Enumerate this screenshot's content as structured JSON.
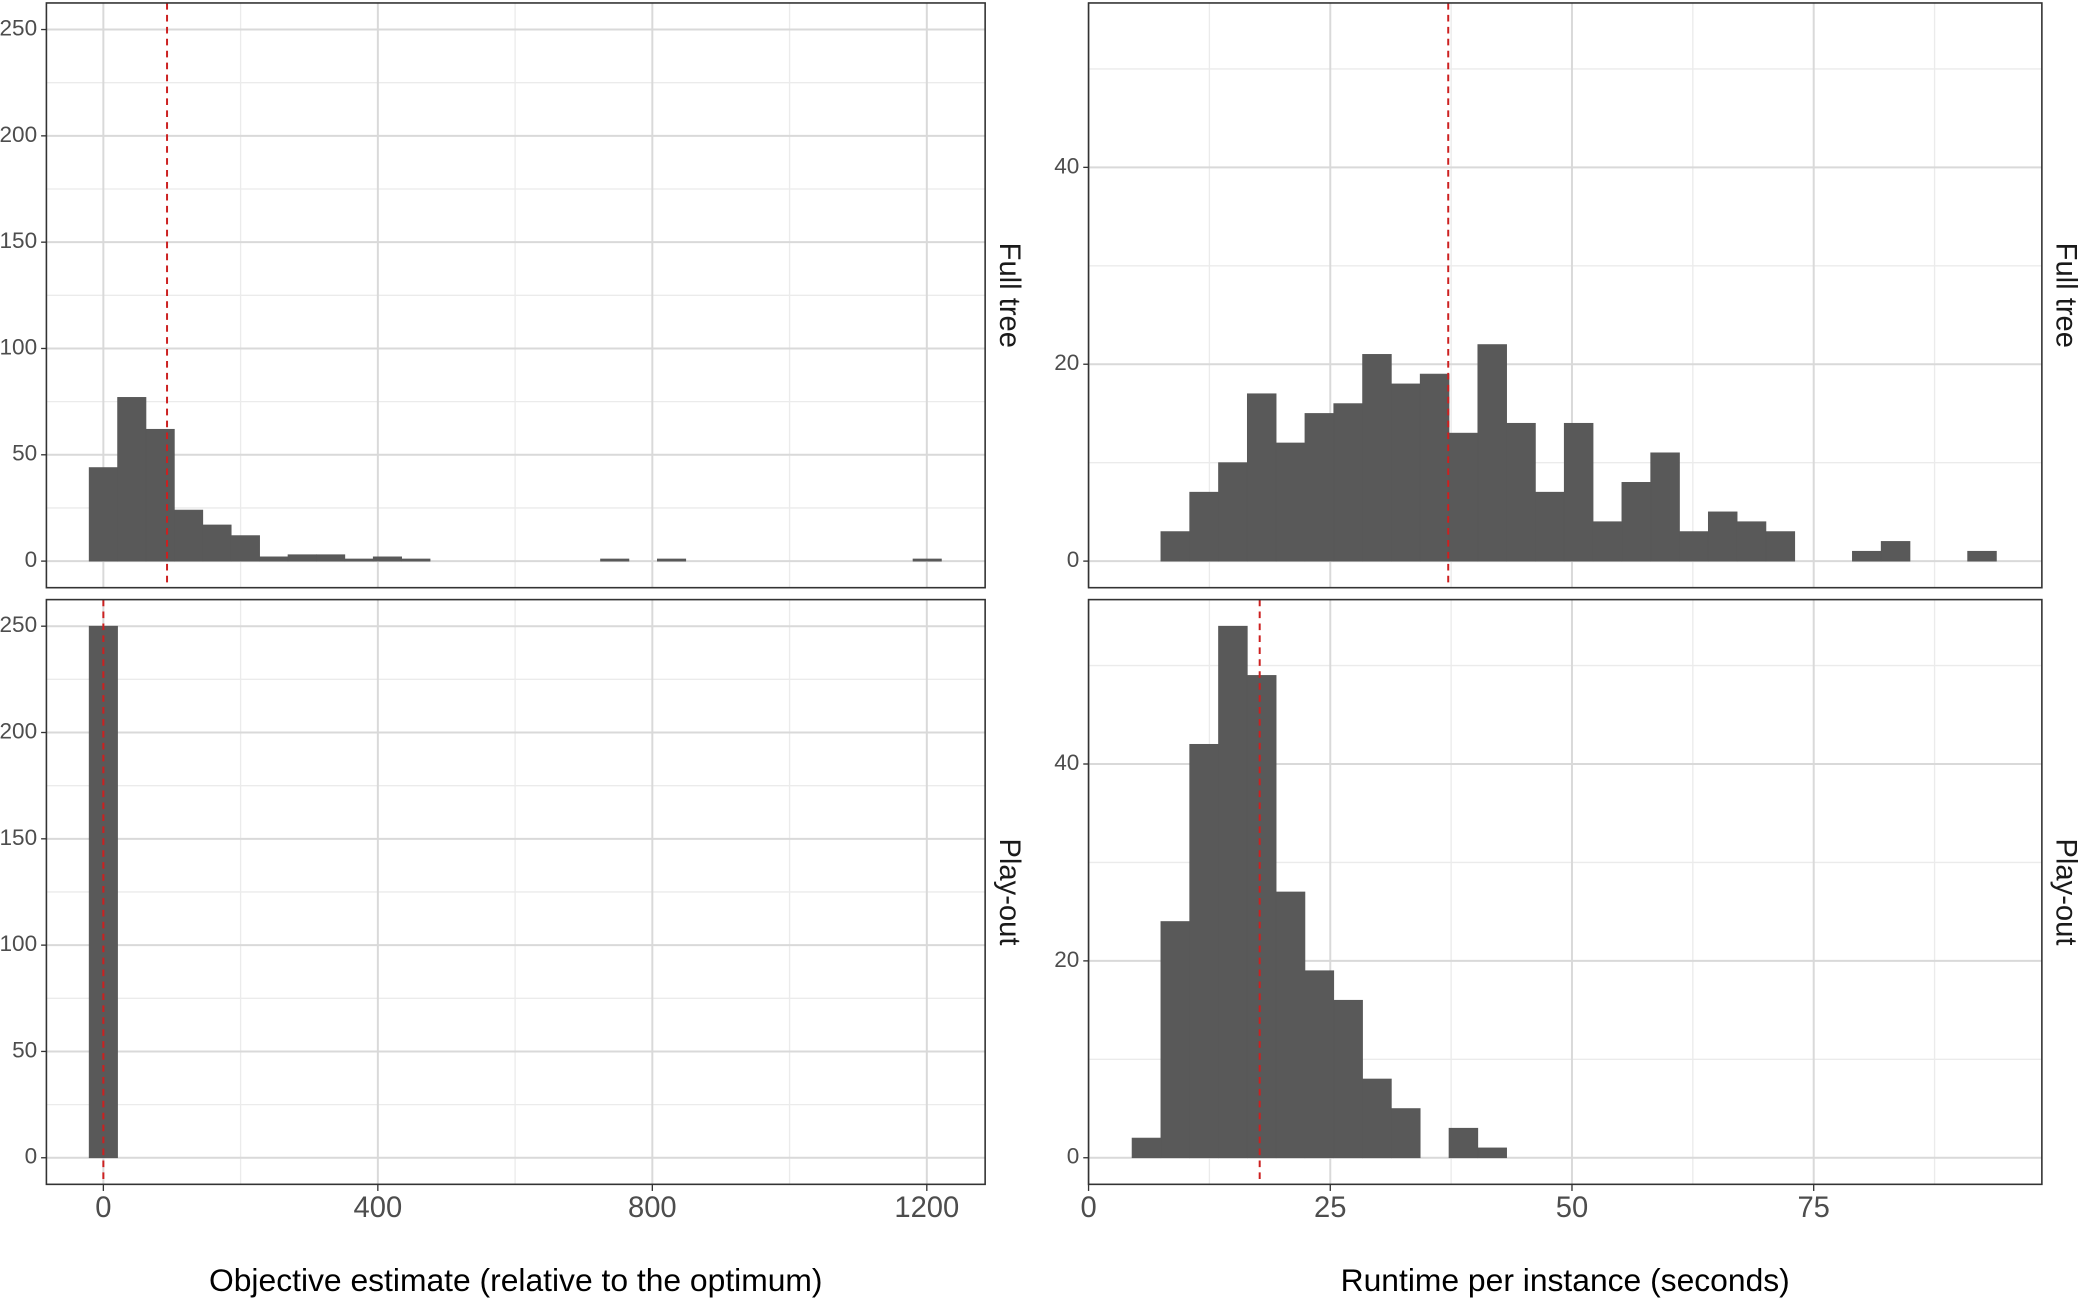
{
  "chart_data": [
    {
      "type": "histogram",
      "facet": "Full tree",
      "color": "#595959",
      "grid": true,
      "bins": [
        -20.7,
        20.7,
        62.1,
        103.5,
        144.9,
        186.3,
        227.7,
        269.1,
        310.5,
        351.9,
        393.3,
        434.7,
        476.1,
        517.5,
        558.9,
        600.3,
        641.7,
        683.1,
        724.5,
        765.9,
        807.3,
        848.7,
        890.1,
        931.5,
        972.9,
        1014.3,
        1055.7,
        1097.1,
        1138.5,
        1179.9,
        1221.3
      ],
      "values": [
        44,
        77,
        62,
        24,
        17,
        12,
        2,
        3,
        3,
        1,
        2,
        1,
        0,
        0,
        0,
        0,
        0,
        0,
        1,
        0,
        1,
        0,
        0,
        0,
        0,
        0,
        0,
        0,
        0,
        1
      ],
      "xlim": [
        -83,
        1285
      ],
      "xticks": [
        0,
        400,
        800,
        1200
      ],
      "ylim": [
        -12.5,
        262.5
      ],
      "yticks": [
        0,
        50,
        100,
        150,
        200,
        250
      ],
      "vline": 92.8,
      "vline_color": "#cc2020"
    },
    {
      "type": "histogram",
      "facet": "Play-out",
      "color": "#595959",
      "grid": true,
      "bins": [
        -20.7,
        20.7
      ],
      "values": [
        250
      ],
      "xlim": [
        -83,
        1285
      ],
      "xticks": [
        0,
        400,
        800,
        1200
      ],
      "ylim": [
        -12.5,
        262.5
      ],
      "yticks": [
        0,
        50,
        100,
        150,
        200,
        250
      ],
      "vline": 0,
      "vline_color": "#cc2020",
      "xlabel": "Objective estimate (relative to the optimum)"
    },
    {
      "type": "histogram",
      "facet": "Full tree",
      "color": "#595959",
      "grid": true,
      "bins": [
        7.48,
        10.46,
        13.44,
        16.42,
        19.4,
        22.38,
        25.36,
        28.34,
        31.32,
        34.3,
        37.28,
        40.26,
        43.24,
        46.22,
        49.2,
        52.18,
        55.16,
        58.14,
        61.12,
        64.1,
        67.08,
        70.06,
        73.04,
        76.02,
        79.0,
        81.98,
        84.96,
        87.94,
        90.92,
        93.9
      ],
      "values": [
        3,
        7,
        10,
        17,
        12,
        15,
        16,
        21,
        18,
        19,
        13,
        22,
        14,
        7,
        14,
        4,
        8,
        11,
        3,
        5,
        4,
        3,
        0,
        0,
        1,
        2,
        0,
        0,
        1
      ],
      "xlim": [
        0,
        98.6
      ],
      "xticks": [
        0,
        25,
        50,
        75
      ],
      "ylim": [
        -2.7,
        56.7
      ],
      "yticks": [
        0,
        20,
        40
      ],
      "vline": 37.2,
      "vline_color": "#cc2020"
    },
    {
      "type": "histogram",
      "facet": "Play-out",
      "color": "#595959",
      "grid": true,
      "bins": [
        4.5,
        7.48,
        10.46,
        13.44,
        16.42,
        19.4,
        22.38,
        25.36,
        28.34,
        31.32,
        34.3,
        37.28,
        40.26,
        43.24
      ],
      "values": [
        2,
        24,
        42,
        54,
        49,
        27,
        19,
        16,
        8,
        5,
        0,
        3,
        1
      ],
      "xlim": [
        0,
        98.6
      ],
      "xticks": [
        0,
        25,
        50,
        75
      ],
      "ylim": [
        -2.7,
        56.7
      ],
      "yticks": [
        0,
        20,
        40
      ],
      "vline": 17.7,
      "vline_color": "#cc2020",
      "xlabel": "Runtime per instance (seconds)"
    }
  ]
}
